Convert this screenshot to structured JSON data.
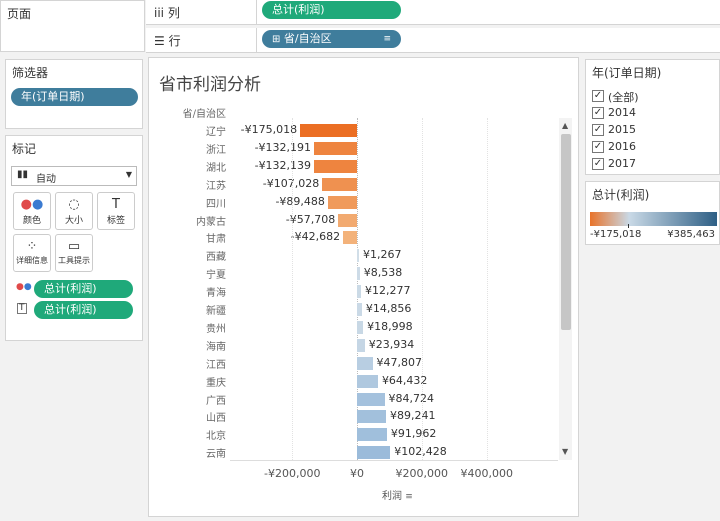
{
  "pages": {
    "title": "页面"
  },
  "filters": {
    "title": "筛选器",
    "pill": "年(订单日期)"
  },
  "marks": {
    "title": "标记",
    "type_label": "自动",
    "buttons": [
      {
        "label": "颜色",
        "icon": "color-icon"
      },
      {
        "label": "大小",
        "icon": "size-icon"
      },
      {
        "label": "标签",
        "icon": "label-icon"
      },
      {
        "label": "详细信息",
        "icon": "detail-icon"
      },
      {
        "label": "工具提示",
        "icon": "tooltip-icon"
      }
    ],
    "fields": [
      "总计(利润)",
      "总计(利润)"
    ]
  },
  "shelves": {
    "columns": {
      "label": "列",
      "pill": "总计(利润)"
    },
    "rows": {
      "label": "行",
      "pill": "省/自治区"
    }
  },
  "year_filter": {
    "title": "年(订单日期)",
    "options": [
      {
        "label": "(全部)",
        "checked": true
      },
      {
        "label": "2014",
        "checked": true
      },
      {
        "label": "2015",
        "checked": true
      },
      {
        "label": "2016",
        "checked": true
      },
      {
        "label": "2017",
        "checked": true
      }
    ]
  },
  "legend": {
    "title": "总计(利润)",
    "min_label": "-¥175,018",
    "max_label": "¥385,463",
    "color_low": "#e8732a",
    "color_mid": "#c9d9e6",
    "color_high": "#2e5f85"
  },
  "chart_data": {
    "type": "bar",
    "orientation": "horizontal",
    "title": "省市利润分析",
    "row_header": "省/自治区",
    "xlabel": "利润",
    "x_ticks": [
      "-¥200,000",
      "¥0",
      "¥200,000",
      "¥400,000"
    ],
    "x_tick_values": [
      -200000,
      0,
      200000,
      400000
    ],
    "categories": [
      "辽宁",
      "浙江",
      "湖北",
      "江苏",
      "四川",
      "内蒙古",
      "甘肃",
      "西藏",
      "宁夏",
      "青海",
      "新疆",
      "贵州",
      "海南",
      "江西",
      "重庆",
      "广西",
      "山西",
      "北京",
      "云南"
    ],
    "values": [
      -175018,
      -132191,
      -132139,
      -107028,
      -89488,
      -57708,
      -42682,
      1267,
      8538,
      12277,
      14856,
      18998,
      23934,
      47807,
      64432,
      84724,
      89241,
      91962,
      102428
    ],
    "labels": [
      "-¥175,018",
      "-¥132,191",
      "-¥132,139",
      "-¥107,028",
      "-¥89,488",
      "-¥57,708",
      "-¥42,682",
      "¥1,267",
      "¥8,538",
      "¥12,277",
      "¥14,856",
      "¥18,998",
      "¥23,934",
      "¥47,807",
      "¥64,432",
      "¥84,724",
      "¥89,241",
      "¥91,962",
      "¥102,428"
    ],
    "color_min": -175018,
    "color_max": 385463
  }
}
